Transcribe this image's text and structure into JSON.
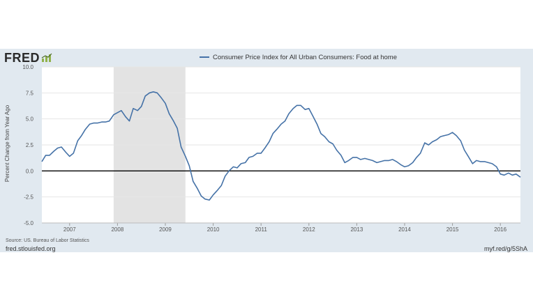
{
  "logo": {
    "text": "FRED",
    "icon": "fred-chart-icon"
  },
  "footer": {
    "source": "Source: US. Bureau of Labor Statistics",
    "site": "fred.stlouisfed.org",
    "short_url": "myf.red/g/5ShA"
  },
  "colors": {
    "series": "#4572a7",
    "recession": "#e3e3e3",
    "zero_line": "#000000",
    "panel": "#e1e9f0"
  },
  "chart_data": {
    "type": "line",
    "title": "",
    "xlabel": "",
    "ylabel": "Percent Change from Year Ago",
    "ylim": [
      -5.0,
      10.0
    ],
    "yticks": [
      "10.0",
      "7.5",
      "5.0",
      "2.5",
      "0.0",
      "-2.5",
      "-5.0"
    ],
    "ytick_values": [
      10,
      7.5,
      5,
      2.5,
      0,
      -2.5,
      -5
    ],
    "xlim": [
      2006.42,
      2016.42
    ],
    "xticks": [
      "2007",
      "2008",
      "2009",
      "2010",
      "2011",
      "2012",
      "2013",
      "2014",
      "2015",
      "2016"
    ],
    "xtick_values": [
      2007,
      2008,
      2009,
      2010,
      2011,
      2012,
      2013,
      2014,
      2015,
      2016
    ],
    "grid": true,
    "legend_position": "top-center",
    "recession_shading": [
      [
        2007.92,
        2009.42
      ]
    ],
    "series": [
      {
        "name": "Consumer Price Index for All Urban Consumers: Food at home",
        "x": [
          2006.42,
          2006.5,
          2006.58,
          2006.67,
          2006.75,
          2006.83,
          2006.92,
          2007.0,
          2007.08,
          2007.17,
          2007.25,
          2007.33,
          2007.42,
          2007.5,
          2007.58,
          2007.67,
          2007.75,
          2007.83,
          2007.92,
          2008.0,
          2008.08,
          2008.17,
          2008.25,
          2008.33,
          2008.42,
          2008.5,
          2008.58,
          2008.67,
          2008.75,
          2008.83,
          2008.92,
          2009.0,
          2009.08,
          2009.17,
          2009.25,
          2009.33,
          2009.42,
          2009.5,
          2009.58,
          2009.67,
          2009.75,
          2009.83,
          2009.92,
          2010.0,
          2010.08,
          2010.17,
          2010.25,
          2010.33,
          2010.42,
          2010.5,
          2010.58,
          2010.67,
          2010.75,
          2010.83,
          2010.92,
          2011.0,
          2011.08,
          2011.17,
          2011.25,
          2011.33,
          2011.42,
          2011.5,
          2011.58,
          2011.67,
          2011.75,
          2011.83,
          2011.92,
          2012.0,
          2012.08,
          2012.17,
          2012.25,
          2012.33,
          2012.42,
          2012.5,
          2012.58,
          2012.67,
          2012.75,
          2012.83,
          2012.92,
          2013.0,
          2013.08,
          2013.17,
          2013.25,
          2013.33,
          2013.42,
          2013.5,
          2013.58,
          2013.67,
          2013.75,
          2013.83,
          2013.92,
          2014.0,
          2014.08,
          2014.17,
          2014.25,
          2014.33,
          2014.42,
          2014.5,
          2014.58,
          2014.67,
          2014.75,
          2014.83,
          2014.92,
          2015.0,
          2015.08,
          2015.17,
          2015.25,
          2015.33,
          2015.42,
          2015.5,
          2015.58,
          2015.67,
          2015.75,
          2015.83,
          2015.92,
          2016.0,
          2016.08,
          2016.17,
          2016.25,
          2016.33,
          2016.42
        ],
        "values": [
          0.9,
          1.5,
          1.5,
          1.9,
          2.2,
          2.3,
          1.8,
          1.4,
          1.7,
          2.9,
          3.4,
          4.0,
          4.5,
          4.6,
          4.6,
          4.7,
          4.7,
          4.8,
          5.4,
          5.6,
          5.8,
          5.2,
          4.8,
          6.0,
          5.8,
          6.2,
          7.2,
          7.5,
          7.6,
          7.5,
          7.0,
          6.5,
          5.5,
          4.8,
          4.1,
          2.3,
          1.4,
          0.5,
          -1.0,
          -1.7,
          -2.4,
          -2.7,
          -2.8,
          -2.3,
          -1.9,
          -1.4,
          -0.5,
          0.0,
          0.4,
          0.3,
          0.7,
          0.8,
          1.3,
          1.4,
          1.7,
          1.7,
          2.2,
          2.8,
          3.6,
          4.0,
          4.5,
          4.8,
          5.5,
          6.0,
          6.3,
          6.3,
          5.9,
          6.0,
          5.3,
          4.5,
          3.6,
          3.3,
          2.8,
          2.6,
          2.0,
          1.5,
          0.8,
          1.0,
          1.3,
          1.3,
          1.1,
          1.2,
          1.1,
          1.0,
          0.8,
          0.9,
          1.0,
          1.0,
          1.1,
          0.9,
          0.6,
          0.4,
          0.5,
          0.8,
          1.3,
          1.7,
          2.7,
          2.5,
          2.8,
          3.0,
          3.3,
          3.4,
          3.5,
          3.7,
          3.4,
          2.9,
          2.0,
          1.4,
          0.7,
          1.0,
          0.9,
          0.9,
          0.8,
          0.7,
          0.4,
          -0.3,
          -0.4,
          -0.2,
          -0.4,
          -0.3,
          -0.6
        ]
      }
    ]
  }
}
